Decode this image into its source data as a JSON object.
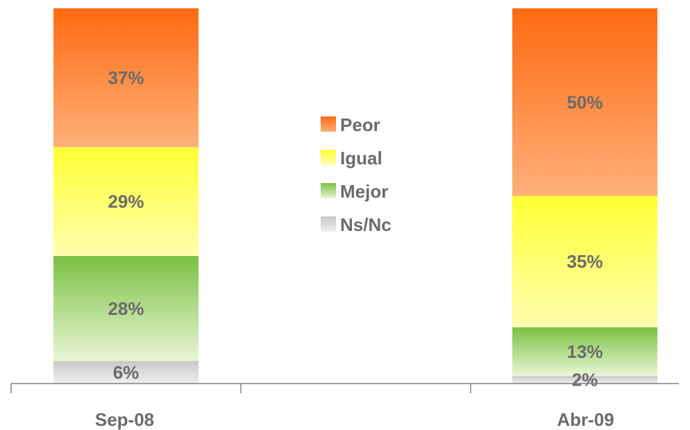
{
  "chart_data": {
    "type": "bar",
    "stacked": true,
    "categories": [
      "Sep-08",
      "Abr-09"
    ],
    "series": [
      {
        "name": "Ns/Nc",
        "values": [
          6,
          2
        ],
        "labels": [
          "6%",
          "2%"
        ],
        "color_top": "#c8c8c8",
        "color_bottom": "#efefef"
      },
      {
        "name": "Mejor",
        "values": [
          28,
          13
        ],
        "labels": [
          "28%",
          "13%"
        ],
        "color_top": "#7ac142",
        "color_bottom": "#eaf6d6"
      },
      {
        "name": "Igual",
        "values": [
          29,
          35
        ],
        "labels": [
          "29%",
          "35%"
        ],
        "color_top": "#ffff33",
        "color_bottom": "#ffffb0"
      },
      {
        "name": "Peor",
        "values": [
          37,
          50
        ],
        "labels": [
          "37%",
          "50%"
        ],
        "color_top": "#ff6a10",
        "color_bottom": "#ffb07a"
      }
    ],
    "legend": {
      "position": "center",
      "order": [
        "Peor",
        "Igual",
        "Mejor",
        "Ns/Nc"
      ]
    },
    "ylim": [
      0,
      100
    ],
    "grid": false
  }
}
